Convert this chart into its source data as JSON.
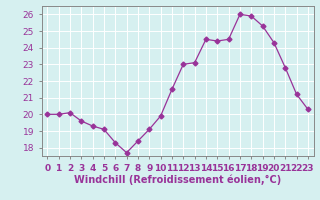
{
  "x": [
    0,
    1,
    2,
    3,
    4,
    5,
    6,
    7,
    8,
    9,
    10,
    11,
    12,
    13,
    14,
    15,
    16,
    17,
    18,
    19,
    20,
    21,
    22,
    23
  ],
  "y": [
    20.0,
    20.0,
    20.1,
    19.6,
    19.3,
    19.1,
    18.3,
    17.7,
    18.4,
    19.1,
    19.9,
    21.5,
    23.0,
    23.1,
    24.5,
    24.4,
    24.5,
    26.0,
    25.9,
    25.3,
    24.3,
    22.8,
    21.2,
    20.3
  ],
  "line_color": "#993399",
  "marker": "D",
  "marker_size": 2.5,
  "bg_color": "#d6f0f0",
  "grid_color": "#b0d8d8",
  "xlabel": "Windchill (Refroidissement éolien,°C)",
  "ylim": [
    17.5,
    26.5
  ],
  "xlim": [
    -0.5,
    23.5
  ],
  "yticks": [
    18,
    19,
    20,
    21,
    22,
    23,
    24,
    25,
    26
  ],
  "xtick_labels": [
    "0",
    "1",
    "2",
    "3",
    "4",
    "5",
    "6",
    "7",
    "8",
    "9",
    "10",
    "11",
    "12",
    "13",
    "14",
    "15",
    "16",
    "17",
    "18",
    "19",
    "20",
    "21",
    "22",
    "23"
  ],
  "label_fontsize": 7,
  "tick_fontsize": 6.5,
  "tick_color": "#993399",
  "spine_color": "#888888"
}
